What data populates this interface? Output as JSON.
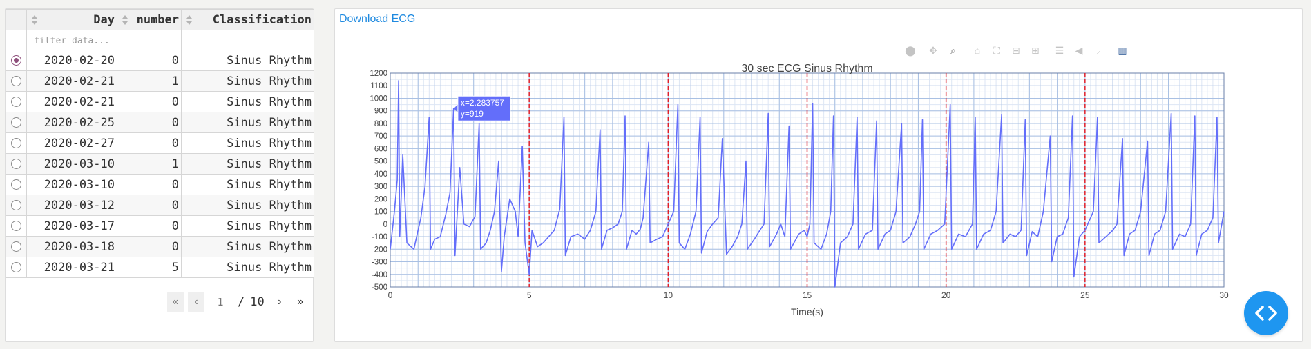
{
  "table": {
    "columns": [
      "Day",
      "number",
      "Classification"
    ],
    "filter_placeholder": "filter data...",
    "rows": [
      {
        "day": "2020-02-20",
        "number": "0",
        "classification": "Sinus Rhythm",
        "selected": true
      },
      {
        "day": "2020-02-21",
        "number": "1",
        "classification": "Sinus Rhythm",
        "selected": false
      },
      {
        "day": "2020-02-21",
        "number": "0",
        "classification": "Sinus Rhythm",
        "selected": false
      },
      {
        "day": "2020-02-25",
        "number": "0",
        "classification": "Sinus Rhythm",
        "selected": false
      },
      {
        "day": "2020-02-27",
        "number": "0",
        "classification": "Sinus Rhythm",
        "selected": false
      },
      {
        "day": "2020-03-10",
        "number": "1",
        "classification": "Sinus Rhythm",
        "selected": false
      },
      {
        "day": "2020-03-10",
        "number": "0",
        "classification": "Sinus Rhythm",
        "selected": false
      },
      {
        "day": "2020-03-12",
        "number": "0",
        "classification": "Sinus Rhythm",
        "selected": false
      },
      {
        "day": "2020-03-17",
        "number": "0",
        "classification": "Sinus Rhythm",
        "selected": false
      },
      {
        "day": "2020-03-18",
        "number": "0",
        "classification": "Sinus Rhythm",
        "selected": false
      },
      {
        "day": "2020-03-21",
        "number": "5",
        "classification": "Sinus Rhythm",
        "selected": false
      }
    ]
  },
  "pager": {
    "first": "«",
    "prev": "‹",
    "current": "1",
    "separator": "/",
    "total": "10",
    "next": "›",
    "last": "»"
  },
  "download_label": "Download ECG",
  "modebar_icons": [
    "camera-icon",
    "pan-icon",
    "zoom-icon",
    "home-icon",
    "autoscale-icon",
    "zoom-out-icon",
    "zoom-in-icon",
    "compare-hover-icon",
    "closest-hover-icon",
    "spike-lines-icon",
    "plotly-logo-icon"
  ],
  "colors": {
    "trace": "#636efa",
    "marker_line": "#e0202a",
    "grid_major": "#a9c0e3",
    "grid_minor": "#dde6f4",
    "link": "#1f8ae0",
    "fab": "#1e96f0",
    "radio_selected": "#8e4f7b"
  },
  "chart_data": {
    "type": "line",
    "title": "30 sec ECG Sinus Rhythm",
    "xlabel": "Time(s)",
    "ylabel": "",
    "xlim": [
      0,
      30
    ],
    "ylim": [
      -500,
      1200
    ],
    "x_ticks": [
      0,
      5,
      10,
      15,
      20,
      25,
      30
    ],
    "y_ticks": [
      -500,
      -400,
      -300,
      -200,
      -100,
      0,
      100,
      200,
      300,
      400,
      500,
      600,
      700,
      800,
      900,
      1000,
      1100,
      1200
    ],
    "vertical_markers": [
      5,
      10,
      15,
      20,
      25
    ],
    "hover": {
      "x_text": "x=2.283757",
      "y_text": "y=919",
      "x": 2.283757,
      "y": 919
    },
    "series": [
      {
        "name": "",
        "points": [
          [
            0,
            -200
          ],
          [
            0.15,
            100
          ],
          [
            0.25,
            350
          ],
          [
            0.3,
            1140
          ],
          [
            0.34,
            -100
          ],
          [
            0.45,
            550
          ],
          [
            0.6,
            -150
          ],
          [
            0.85,
            -200
          ],
          [
            1.0,
            -50
          ],
          [
            1.1,
            50
          ],
          [
            1.25,
            300
          ],
          [
            1.4,
            850
          ],
          [
            1.45,
            -200
          ],
          [
            1.6,
            -120
          ],
          [
            1.8,
            -100
          ],
          [
            2.0,
            80
          ],
          [
            2.15,
            250
          ],
          [
            2.28,
            919
          ],
          [
            2.33,
            -250
          ],
          [
            2.5,
            450
          ],
          [
            2.65,
            0
          ],
          [
            2.85,
            -20
          ],
          [
            3.05,
            60
          ],
          [
            3.2,
            800
          ],
          [
            3.25,
            -200
          ],
          [
            3.45,
            -150
          ],
          [
            3.6,
            -50
          ],
          [
            3.75,
            100
          ],
          [
            3.9,
            500
          ],
          [
            4.0,
            -380
          ],
          [
            4.1,
            -100
          ],
          [
            4.3,
            200
          ],
          [
            4.5,
            100
          ],
          [
            4.6,
            -100
          ],
          [
            4.75,
            620
          ],
          [
            4.85,
            -150
          ],
          [
            5.0,
            -400
          ],
          [
            5.1,
            -50
          ],
          [
            5.3,
            -180
          ],
          [
            5.5,
            -150
          ],
          [
            5.7,
            -100
          ],
          [
            5.9,
            -50
          ],
          [
            6.1,
            120
          ],
          [
            6.25,
            850
          ],
          [
            6.3,
            -250
          ],
          [
            6.5,
            -100
          ],
          [
            6.75,
            -80
          ],
          [
            7.0,
            -120
          ],
          [
            7.2,
            -50
          ],
          [
            7.4,
            100
          ],
          [
            7.55,
            750
          ],
          [
            7.6,
            -200
          ],
          [
            7.8,
            -50
          ],
          [
            8.0,
            -30
          ],
          [
            8.2,
            0
          ],
          [
            8.35,
            100
          ],
          [
            8.45,
            860
          ],
          [
            8.5,
            -200
          ],
          [
            8.7,
            -50
          ],
          [
            8.85,
            -80
          ],
          [
            9.0,
            -40
          ],
          [
            9.1,
            50
          ],
          [
            9.3,
            650
          ],
          [
            9.35,
            -150
          ],
          [
            9.6,
            -120
          ],
          [
            9.8,
            -100
          ],
          [
            10.0,
            0
          ],
          [
            10.2,
            100
          ],
          [
            10.35,
            950
          ],
          [
            10.4,
            -150
          ],
          [
            10.6,
            -200
          ],
          [
            10.8,
            -80
          ],
          [
            11.0,
            100
          ],
          [
            11.15,
            850
          ],
          [
            11.2,
            -230
          ],
          [
            11.4,
            -60
          ],
          [
            11.6,
            0
          ],
          [
            11.8,
            50
          ],
          [
            11.95,
            680
          ],
          [
            12.1,
            -240
          ],
          [
            12.3,
            -180
          ],
          [
            12.5,
            -100
          ],
          [
            12.65,
            0
          ],
          [
            12.8,
            500
          ],
          [
            12.85,
            -200
          ],
          [
            13.1,
            -120
          ],
          [
            13.3,
            -50
          ],
          [
            13.45,
            0
          ],
          [
            13.6,
            880
          ],
          [
            13.65,
            -180
          ],
          [
            13.9,
            -80
          ],
          [
            14.05,
            0
          ],
          [
            14.2,
            -100
          ],
          [
            14.35,
            780
          ],
          [
            14.4,
            -200
          ],
          [
            14.7,
            -80
          ],
          [
            14.9,
            -50
          ],
          [
            15.0,
            -100
          ],
          [
            15.1,
            0
          ],
          [
            15.2,
            960
          ],
          [
            15.25,
            -150
          ],
          [
            15.5,
            -200
          ],
          [
            15.7,
            -80
          ],
          [
            15.85,
            100
          ],
          [
            15.95,
            860
          ],
          [
            16.0,
            -500
          ],
          [
            16.2,
            -150
          ],
          [
            16.45,
            -100
          ],
          [
            16.65,
            0
          ],
          [
            16.8,
            850
          ],
          [
            16.85,
            -200
          ],
          [
            17.1,
            -80
          ],
          [
            17.35,
            -50
          ],
          [
            17.5,
            820
          ],
          [
            17.55,
            -200
          ],
          [
            17.8,
            -80
          ],
          [
            18.0,
            -50
          ],
          [
            18.2,
            100
          ],
          [
            18.4,
            800
          ],
          [
            18.45,
            -150
          ],
          [
            18.7,
            -100
          ],
          [
            18.9,
            0
          ],
          [
            19.05,
            100
          ],
          [
            19.15,
            830
          ],
          [
            19.2,
            -200
          ],
          [
            19.45,
            -80
          ],
          [
            19.7,
            -50
          ],
          [
            19.95,
            0
          ],
          [
            20.15,
            950
          ],
          [
            20.2,
            -200
          ],
          [
            20.45,
            -80
          ],
          [
            20.7,
            -100
          ],
          [
            20.95,
            0
          ],
          [
            21.05,
            850
          ],
          [
            21.1,
            -200
          ],
          [
            21.35,
            -80
          ],
          [
            21.6,
            -50
          ],
          [
            21.8,
            100
          ],
          [
            22.0,
            870
          ],
          [
            22.05,
            -150
          ],
          [
            22.3,
            -80
          ],
          [
            22.5,
            -100
          ],
          [
            22.7,
            -50
          ],
          [
            22.85,
            830
          ],
          [
            22.9,
            -250
          ],
          [
            23.1,
            -60
          ],
          [
            23.3,
            -100
          ],
          [
            23.5,
            100
          ],
          [
            23.75,
            700
          ],
          [
            23.8,
            -300
          ],
          [
            24.0,
            -100
          ],
          [
            24.2,
            -80
          ],
          [
            24.4,
            50
          ],
          [
            24.55,
            860
          ],
          [
            24.6,
            -420
          ],
          [
            24.8,
            -100
          ],
          [
            25.0,
            -50
          ],
          [
            25.3,
            100
          ],
          [
            25.45,
            850
          ],
          [
            25.5,
            -150
          ],
          [
            25.75,
            -100
          ],
          [
            26.0,
            -50
          ],
          [
            26.15,
            0
          ],
          [
            26.35,
            680
          ],
          [
            26.4,
            -250
          ],
          [
            26.6,
            -80
          ],
          [
            26.8,
            -50
          ],
          [
            27.0,
            100
          ],
          [
            27.25,
            660
          ],
          [
            27.3,
            -250
          ],
          [
            27.5,
            -80
          ],
          [
            27.7,
            -50
          ],
          [
            27.9,
            100
          ],
          [
            28.1,
            880
          ],
          [
            28.15,
            -200
          ],
          [
            28.4,
            -80
          ],
          [
            28.6,
            -100
          ],
          [
            28.8,
            0
          ],
          [
            28.95,
            860
          ],
          [
            29.0,
            -250
          ],
          [
            29.2,
            -80
          ],
          [
            29.4,
            -50
          ],
          [
            29.6,
            50
          ],
          [
            29.75,
            850
          ],
          [
            29.8,
            -150
          ],
          [
            30.0,
            100
          ]
        ]
      }
    ]
  }
}
